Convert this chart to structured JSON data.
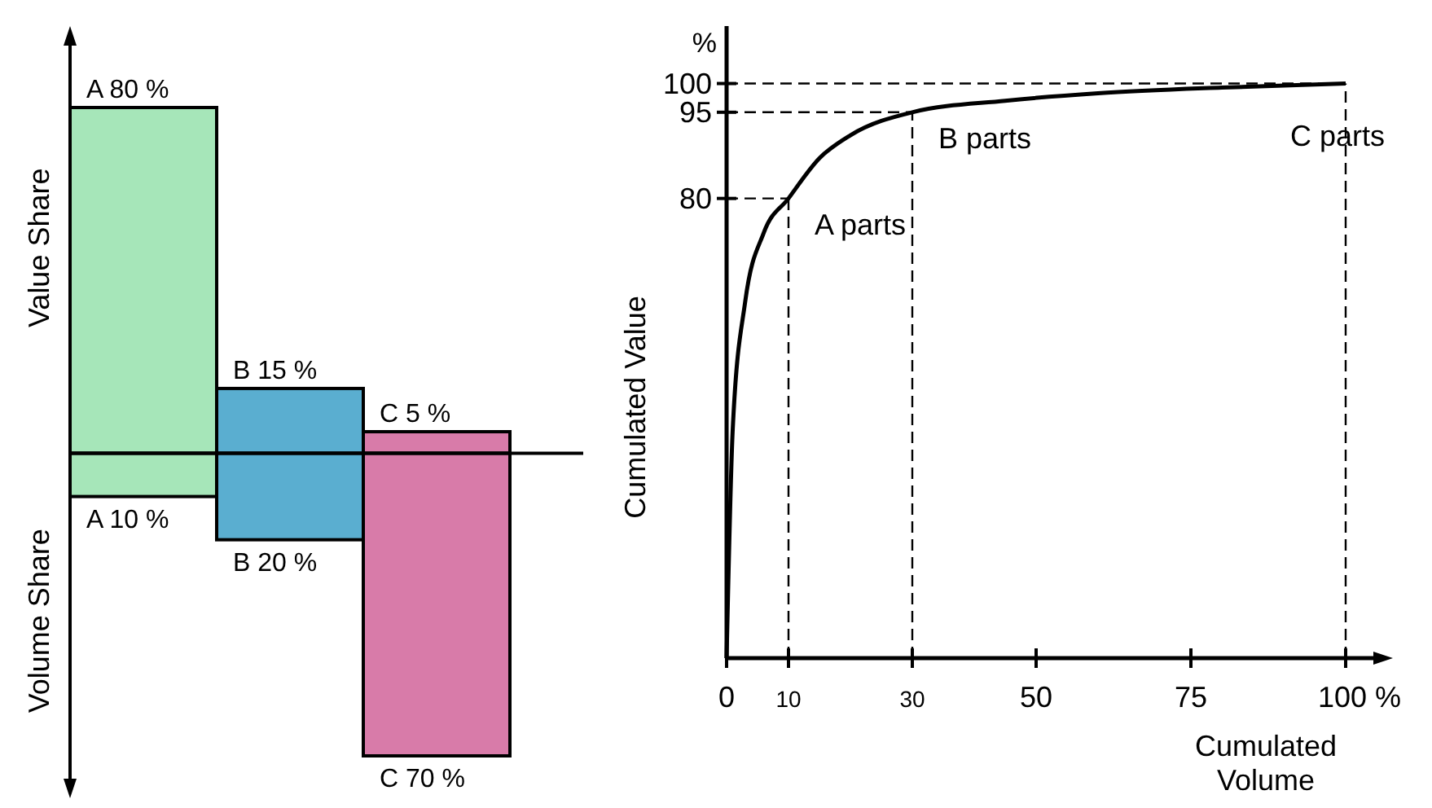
{
  "chart_data": [
    {
      "type": "bar",
      "stacked": true,
      "categories": [
        null,
        null,
        null
      ],
      "series": [
        {
          "name": "Value Share",
          "values": [
            80,
            15,
            5
          ],
          "colors": [
            "#a6e6b9",
            "#5aaed0",
            "#d87ba9"
          ],
          "value_labels": [
            "A 80 %",
            "B 15 %",
            "C 5 %"
          ]
        },
        {
          "name": "Volume Share",
          "values": [
            -10,
            -20,
            -70
          ],
          "colors": [
            "#a6e6b9",
            "#5aaed0",
            "#d87ba9"
          ],
          "value_labels": [
            "A 10 %",
            "B 20 %",
            "C 70 %"
          ]
        }
      ]
    },
    {
      "type": "line",
      "xlabel": "Cumulated Volume",
      "ylabel": "Cumulated Value",
      "xlim": [
        0,
        105
      ],
      "ylim": [
        0,
        110
      ],
      "xticks": [
        0,
        10,
        30,
        50,
        75,
        {
          "value": 100,
          "label": "100 %"
        }
      ],
      "yticks": [
        80,
        95,
        100
      ],
      "marker": "none",
      "line_style": "solid",
      "x": [
        0,
        1,
        3,
        6,
        10,
        15,
        20,
        30,
        45,
        60,
        80,
        100
      ],
      "series": [
        {
          "color": "#000000",
          "values": [
            0,
            40,
            62,
            74,
            80,
            87,
            91,
            95,
            97,
            98.3,
            99.3,
            100
          ]
        }
      ],
      "ref_lines": [
        {
          "axis": "x",
          "value": 10,
          "line_style": "dashed"
        },
        {
          "axis": "x",
          "value": 30,
          "line_style": "dashed"
        },
        {
          "axis": "x",
          "value": 100,
          "line_style": "dashed"
        },
        {
          "axis": "y",
          "value": 80,
          "line_style": "dashed"
        },
        {
          "axis": "y",
          "value": 95,
          "line_style": "dashed"
        },
        {
          "axis": "y",
          "value": 100,
          "line_style": "dashed"
        }
      ],
      "annotations": [
        "%",
        {
          "text": "A parts",
          "x": 10,
          "y": 80
        },
        {
          "text": "B parts",
          "x": 30,
          "y": 95
        },
        {
          "text": "C parts",
          "x": 100,
          "y": 100
        }
      ]
    }
  ]
}
